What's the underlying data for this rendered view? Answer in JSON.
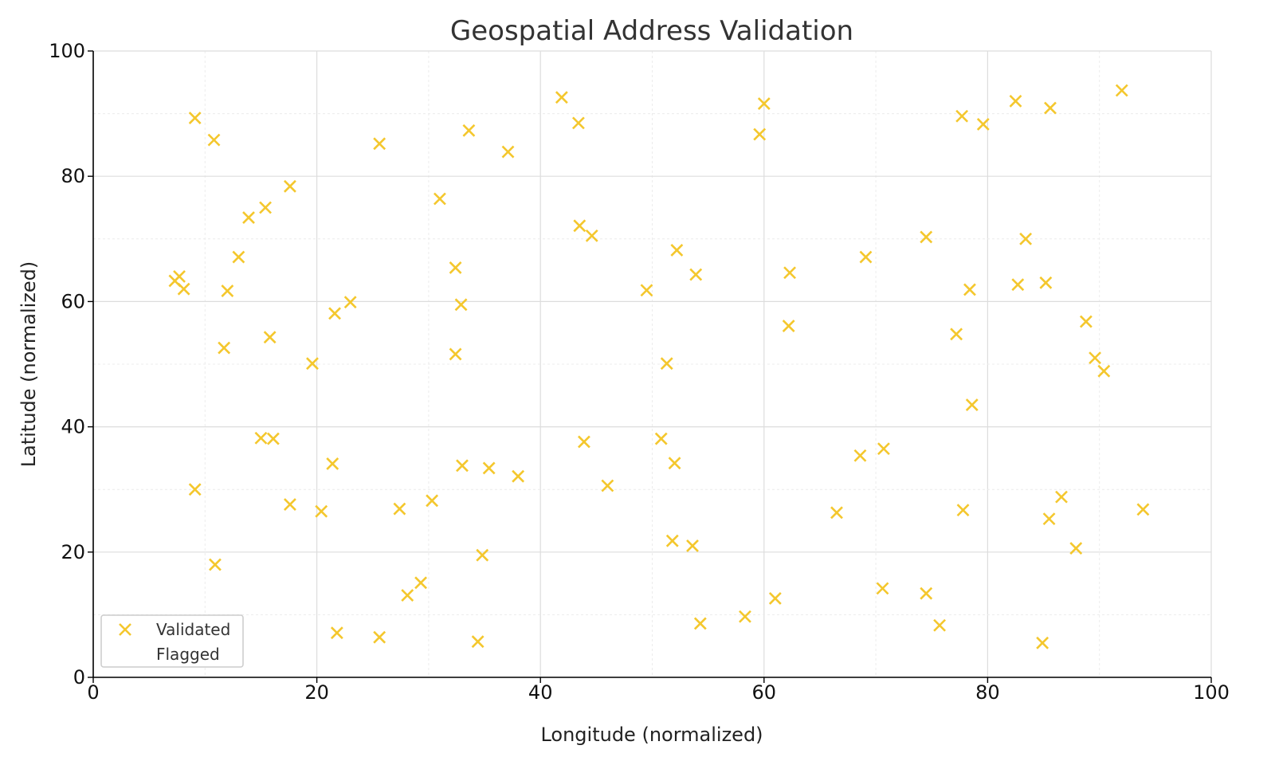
{
  "chart_data": {
    "type": "scatter",
    "title": "Geospatial Address Validation",
    "xlabel": "Longitude (normalized)",
    "ylabel": "Latitude (normalized)",
    "xlim": [
      0,
      100
    ],
    "ylim": [
      0,
      100
    ],
    "x_ticks": [
      0,
      20,
      40,
      60,
      80,
      100
    ],
    "y_ticks": [
      0,
      20,
      40,
      60,
      80,
      100
    ],
    "x_tick_labels": [
      "0",
      "20",
      "40",
      "60",
      "80",
      "100"
    ],
    "y_tick_labels": [
      "0",
      "20",
      "40",
      "60",
      "80",
      "100"
    ],
    "grid": true,
    "legend_position": "lower-left",
    "series": [
      {
        "name": "Validated",
        "marker": "x",
        "color": "#f4c72d",
        "points": [
          [
            7.3,
            63.3
          ],
          [
            7.7,
            64.0
          ],
          [
            8.1,
            62.0
          ],
          [
            9.1,
            89.3
          ],
          [
            10.8,
            85.8
          ],
          [
            9.1,
            30.0
          ],
          [
            10.9,
            18.0
          ],
          [
            11.7,
            52.6
          ],
          [
            12.0,
            61.7
          ],
          [
            13.0,
            67.1
          ],
          [
            13.9,
            73.4
          ],
          [
            15.4,
            75.0
          ],
          [
            15.8,
            54.3
          ],
          [
            15.0,
            38.2
          ],
          [
            16.1,
            38.1
          ],
          [
            17.6,
            78.4
          ],
          [
            17.6,
            27.6
          ],
          [
            19.6,
            50.1
          ],
          [
            20.4,
            26.5
          ],
          [
            21.4,
            34.1
          ],
          [
            21.6,
            58.1
          ],
          [
            23.0,
            59.9
          ],
          [
            21.8,
            7.1
          ],
          [
            25.6,
            85.2
          ],
          [
            25.6,
            6.4
          ],
          [
            27.4,
            26.9
          ],
          [
            28.1,
            13.1
          ],
          [
            29.3,
            15.1
          ],
          [
            30.3,
            28.2
          ],
          [
            31.0,
            76.4
          ],
          [
            32.4,
            65.4
          ],
          [
            32.9,
            59.5
          ],
          [
            32.4,
            51.6
          ],
          [
            33.0,
            33.8
          ],
          [
            33.6,
            87.3
          ],
          [
            34.4,
            5.7
          ],
          [
            35.4,
            33.4
          ],
          [
            34.8,
            19.5
          ],
          [
            37.1,
            83.9
          ],
          [
            38.0,
            32.1
          ],
          [
            41.9,
            92.6
          ],
          [
            43.4,
            88.5
          ],
          [
            43.5,
            72.1
          ],
          [
            44.6,
            70.5
          ],
          [
            43.9,
            37.6
          ],
          [
            46.0,
            30.6
          ],
          [
            49.5,
            61.8
          ],
          [
            50.8,
            38.1
          ],
          [
            51.3,
            50.1
          ],
          [
            52.2,
            68.2
          ],
          [
            52.0,
            34.2
          ],
          [
            51.8,
            21.8
          ],
          [
            53.6,
            21.0
          ],
          [
            53.9,
            64.3
          ],
          [
            54.3,
            8.6
          ],
          [
            58.3,
            9.7
          ],
          [
            59.6,
            86.7
          ],
          [
            60.0,
            91.6
          ],
          [
            61.0,
            12.6
          ],
          [
            62.3,
            64.6
          ],
          [
            62.2,
            56.1
          ],
          [
            66.5,
            26.3
          ],
          [
            68.6,
            35.4
          ],
          [
            69.1,
            67.1
          ],
          [
            70.7,
            36.5
          ],
          [
            70.6,
            14.2
          ],
          [
            74.5,
            70.3
          ],
          [
            74.5,
            13.4
          ],
          [
            75.7,
            8.3
          ],
          [
            77.2,
            54.8
          ],
          [
            77.7,
            89.6
          ],
          [
            77.8,
            26.7
          ],
          [
            78.4,
            61.9
          ],
          [
            78.6,
            43.5
          ],
          [
            79.6,
            88.3
          ],
          [
            82.5,
            92.0
          ],
          [
            82.7,
            62.7
          ],
          [
            83.4,
            70.0
          ],
          [
            84.9,
            5.5
          ],
          [
            85.2,
            63.0
          ],
          [
            85.5,
            25.3
          ],
          [
            85.6,
            90.9
          ],
          [
            86.6,
            28.8
          ],
          [
            87.9,
            20.6
          ],
          [
            88.8,
            56.8
          ],
          [
            89.6,
            51.0
          ],
          [
            90.4,
            48.9
          ],
          [
            92.0,
            93.7
          ],
          [
            93.9,
            26.8
          ]
        ]
      },
      {
        "name": "Flagged",
        "marker": "none",
        "color": "#ffffff",
        "points": []
      }
    ]
  }
}
